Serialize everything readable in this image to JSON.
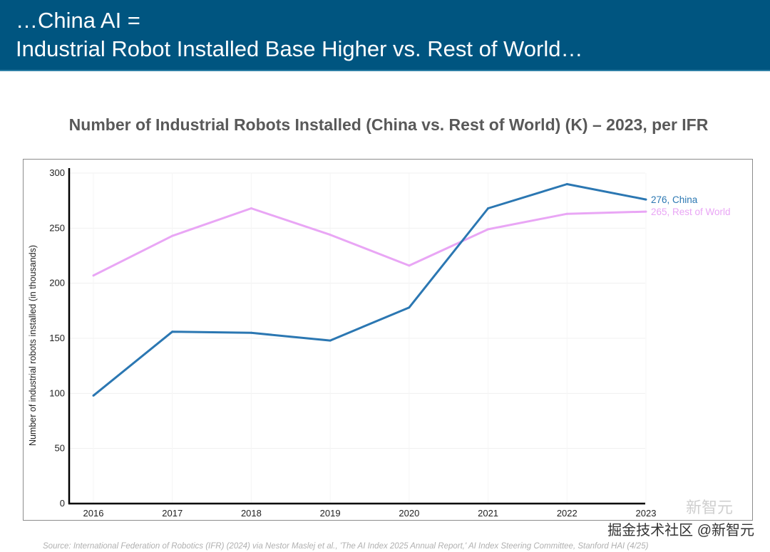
{
  "header": {
    "line1": "…China AI =",
    "line2": "Industrial Robot Installed Base Higher vs. Rest of World…"
  },
  "colors": {
    "header_bg": "#005580",
    "china": "#2b77b2",
    "rest_of_world": "#e9a6f5"
  },
  "chart_data": {
    "type": "line",
    "title": "Number of Industrial Robots Installed (China vs. Rest of World) (K) – 2023, per IFR",
    "xlabel": "",
    "ylabel": "Number of industrial robots installed (in thousands)",
    "x": [
      "2016",
      "2017",
      "2018",
      "2019",
      "2020",
      "2021",
      "2022",
      "2023"
    ],
    "ylim": [
      0,
      300
    ],
    "yticks": [
      "0",
      "50",
      "100",
      "150",
      "200",
      "250",
      "300"
    ],
    "grid": true,
    "series": [
      {
        "name": "China",
        "values": [
          98,
          156,
          155,
          148,
          178,
          268,
          290,
          276
        ],
        "end_label": "276, China",
        "color": "#2b77b2"
      },
      {
        "name": "Rest of World",
        "values": [
          207,
          243,
          268,
          244,
          216,
          249,
          263,
          265
        ],
        "end_label": "265, Rest of World",
        "color": "#e9a6f5"
      }
    ]
  },
  "footer": {
    "source": "Source: International Federation of Robotics (IFR) (2024) via Nestor Maslej et al., 'The AI Index 2025 Annual Report,' AI Index Steering Committee, Stanford HAI (4/25)",
    "watermark": "掘金技术社区 @新智元",
    "watermark_faint": "新智元"
  }
}
